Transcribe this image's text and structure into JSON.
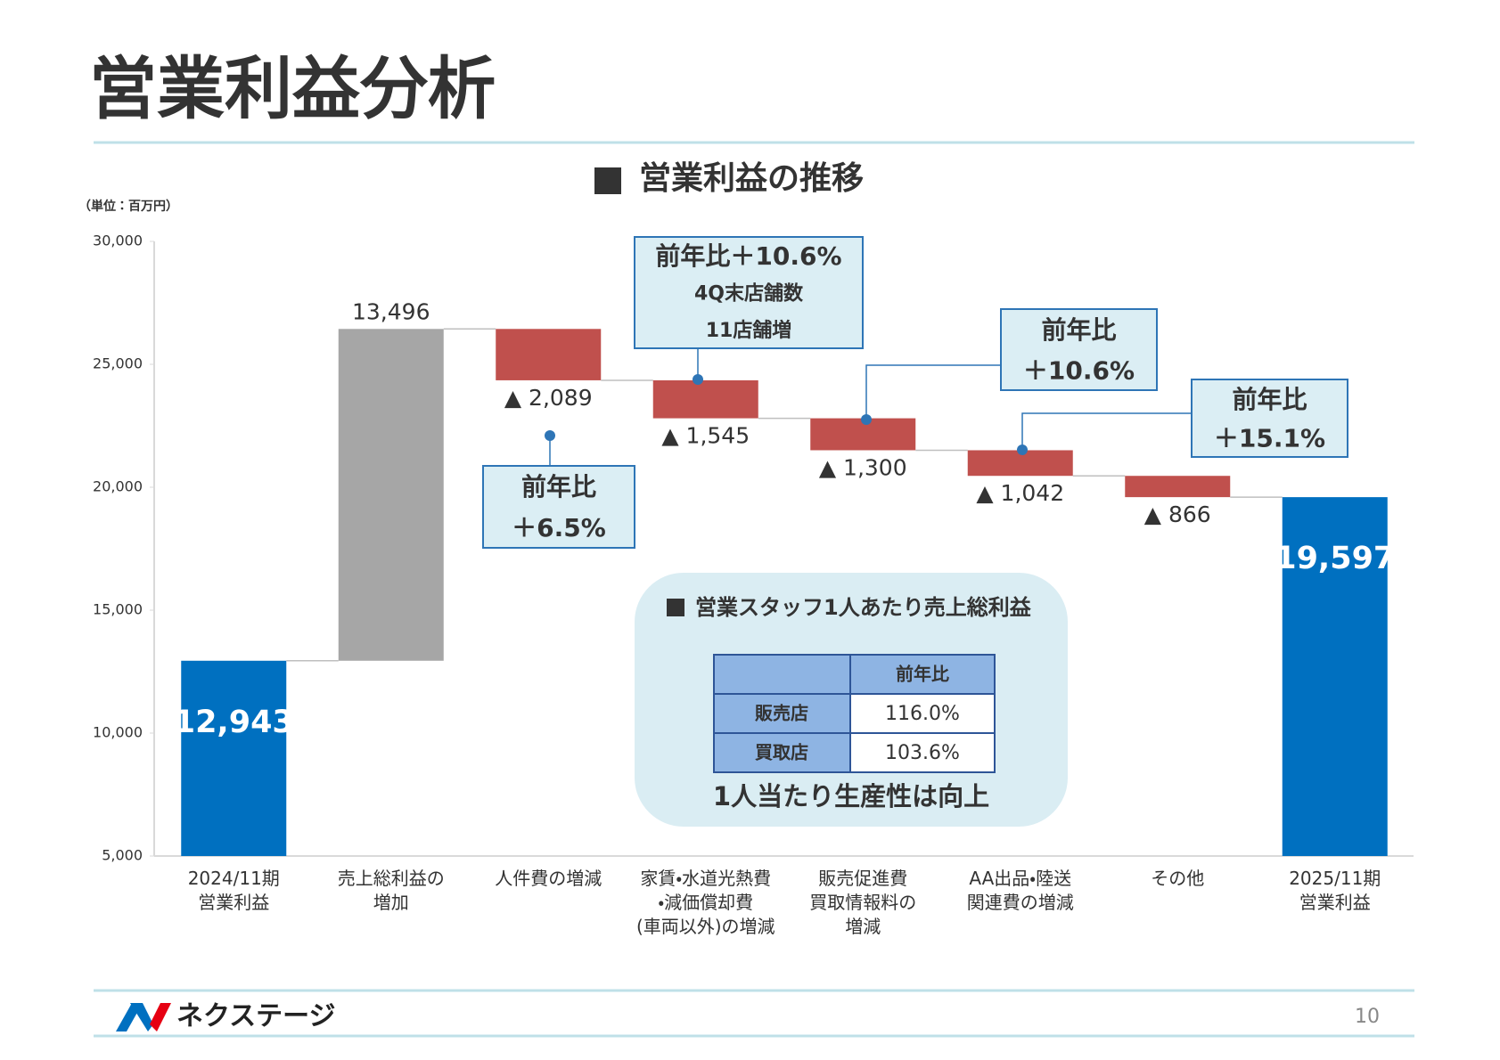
{
  "header": {
    "title": "営業利益分析"
  },
  "chart_data": {
    "type": "waterfall",
    "title": "営業利益の推移",
    "unit_label": "（単位：百万円）",
    "categories": [
      "2024/11期\n営業利益",
      "売上総利益の\n増加",
      "人件費の増減",
      "家賃・水道光熱費\n・減価償却費\n(車両以外)の増減",
      "販売促進費\n買取情報料の\n増減",
      "AA出品・陸送\n関連費の増減",
      "その他",
      "2025/11期\n営業利益"
    ],
    "values": [
      12943,
      13496,
      -2089,
      -1545,
      -1300,
      -1042,
      -866,
      19597
    ],
    "value_labels": [
      "12,943",
      "13,496",
      "▲ 2,089",
      "▲ 1,545",
      "▲ 1,300",
      "▲ 1,042",
      "▲ 866",
      "19,597"
    ],
    "measure": [
      "absolute",
      "relative",
      "relative",
      "relative",
      "relative",
      "relative",
      "relative",
      "total"
    ],
    "colors": [
      "#0070c0",
      "#a6a6a6",
      "#c0504d",
      "#c0504d",
      "#c0504d",
      "#c0504d",
      "#c0504d",
      "#0070c0"
    ],
    "ylim": [
      5000,
      30000
    ],
    "yticks": [
      {
        "value": 5000,
        "label": "5,000"
      },
      {
        "value": 10000,
        "label": "10,000"
      },
      {
        "value": 15000,
        "label": "15,000"
      },
      {
        "value": 20000,
        "label": "20,000"
      },
      {
        "value": 25000,
        "label": "25,000"
      },
      {
        "value": 30000,
        "label": "30,000"
      }
    ],
    "annotations": [
      [
        "前年比",
        "＋6.5%"
      ],
      [
        "前年比＋10.6%",
        "4Q末店舗数",
        "11店舗増"
      ],
      [
        "前年比",
        "＋10.6%"
      ],
      [
        "前年比",
        "＋15.1%"
      ]
    ]
  },
  "panel": {
    "title": "営業スタッフ1人あたり売上総利益",
    "header": "前年比",
    "rows": [
      [
        "販売店",
        "116.0%"
      ],
      [
        "買取店",
        "103.6%"
      ]
    ],
    "footer": "1人当たり生産性は向上"
  },
  "footer": {
    "logo": "ネクステージ",
    "page": "10"
  }
}
